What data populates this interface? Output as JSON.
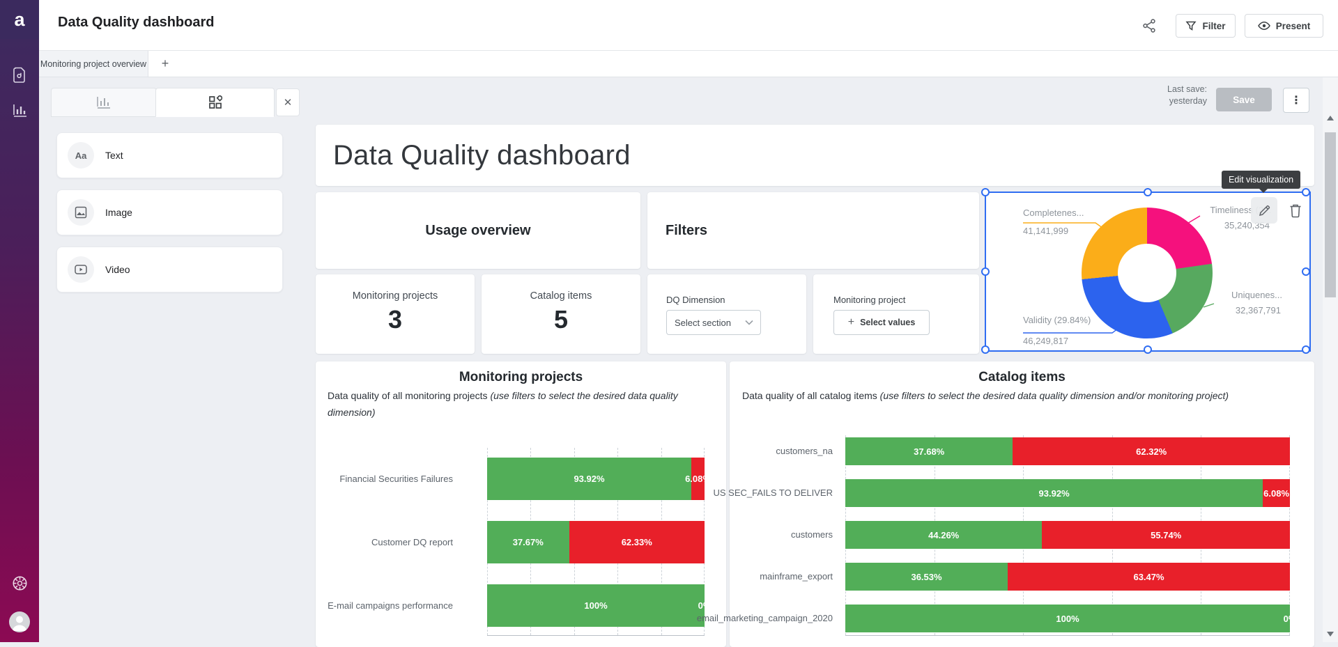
{
  "sidebar": {
    "logo": "a"
  },
  "header": {
    "title": "Data Quality dashboard",
    "filter_button": "Filter",
    "present_button": "Present"
  },
  "tabbar": {
    "active_tab": "Monitoring project overview",
    "add_tab": "+"
  },
  "palette": {
    "close": "✕",
    "items": [
      {
        "label": "Text",
        "glyph": "Aa"
      },
      {
        "label": "Image"
      },
      {
        "label": "Video"
      }
    ]
  },
  "toolbar": {
    "last_save_label": "Last save:",
    "last_save_value": "yesterday",
    "save_button": "Save",
    "kebab": "⋮"
  },
  "canvas": {
    "page_title": "Data Quality dashboard",
    "usage_overview_title": "Usage overview",
    "filters_title": "Filters",
    "stats": [
      {
        "label": "Monitoring projects",
        "value": "3"
      },
      {
        "label": "Catalog items",
        "value": "5"
      }
    ],
    "dq_dimension": {
      "label": "DQ Dimension",
      "select_placeholder": "Select section"
    },
    "monitoring_project": {
      "label": "Monitoring project",
      "plus": "+",
      "button_label": "Select values"
    }
  },
  "edit_tooltip": "Edit visualization",
  "chart_data": [
    {
      "type": "pie",
      "subtype": "donut",
      "start": "top-clockwise",
      "inner_radius_pct": 45,
      "slices": [
        {
          "name": "Timeliness",
          "display_label": "Timeliness (2...",
          "value": 35240354,
          "display_value": "35,240,354",
          "pct": 22.74,
          "color": "#f5117d"
        },
        {
          "name": "Uniqueness",
          "display_label": "Uniquenes...",
          "value": 32367791,
          "display_value": "32,367,791",
          "pct": 20.88,
          "color": "#57a95f"
        },
        {
          "name": "Validity",
          "display_label": "Validity (29.84%)",
          "value": 46249817,
          "display_value": "46,249,817",
          "pct": 29.84,
          "color": "#2c63ee"
        },
        {
          "name": "Completeness",
          "display_label": "Completenes...",
          "value": 41141999,
          "display_value": "41,141,999",
          "pct": 26.54,
          "color": "#fbad19"
        }
      ]
    },
    {
      "type": "bar",
      "orientation": "horizontal-stacked",
      "title": "Monitoring projects",
      "subtitle": "Data quality of all monitoring projects ",
      "subtitle_italic": "(use filters to select the desired data quality dimension)",
      "categories": [
        "Financial Securities Failures",
        "Customer DQ report",
        "E-mail campaigns performance"
      ],
      "series": [
        {
          "name": "passed",
          "color": "#52ae58",
          "values": [
            93.92,
            37.67,
            100
          ]
        },
        {
          "name": "failed",
          "color": "#e8202a",
          "values": [
            6.08,
            62.33,
            0
          ]
        }
      ],
      "xlim": [
        0,
        100
      ],
      "gridlines_pct": [
        0,
        20,
        40,
        60,
        80,
        100
      ],
      "value_format": "percent"
    },
    {
      "type": "bar",
      "orientation": "horizontal-stacked",
      "title": "Catalog items",
      "subtitle": "Data quality of all catalog items ",
      "subtitle_italic": "(use filters to select the desired data quality dimension and/or monitoring project)",
      "categories": [
        "customers_na",
        "US SEC_FAILS TO DELIVER",
        "customers",
        "mainframe_export",
        "email_marketing_campaign_2020"
      ],
      "series": [
        {
          "name": "passed",
          "color": "#52ae58",
          "values": [
            37.68,
            93.92,
            44.26,
            36.53,
            100
          ]
        },
        {
          "name": "failed",
          "color": "#e8202a",
          "values": [
            62.32,
            6.08,
            55.74,
            63.47,
            0
          ]
        }
      ],
      "xlim": [
        0,
        100
      ],
      "gridlines_pct": [
        0,
        20,
        40,
        60,
        80,
        100
      ],
      "value_format": "percent"
    }
  ]
}
